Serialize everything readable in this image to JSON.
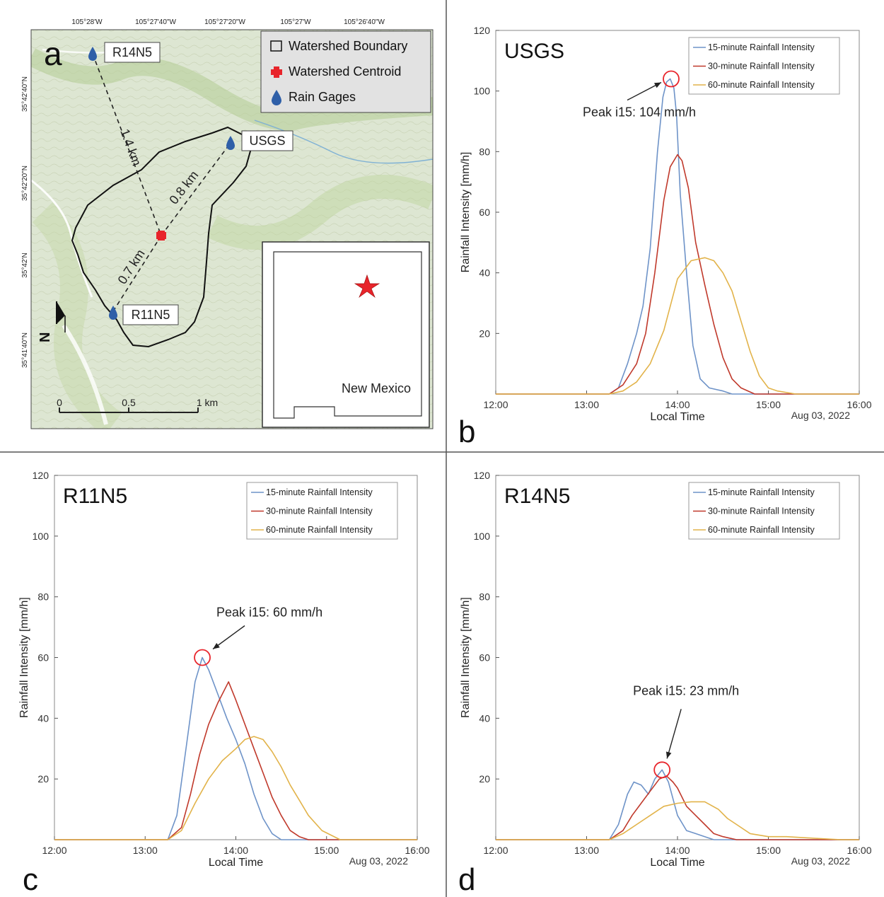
{
  "map": {
    "panel_letter": "a",
    "lon_ticks": [
      "105°28'W",
      "105°27'40\"W",
      "105°27'20\"W",
      "105°27'W",
      "105°26'40\"W"
    ],
    "lat_ticks": [
      "35°42'40\"N",
      "35°42'20\"N",
      "35°42'N",
      "35°41'40\"N"
    ],
    "legend": {
      "boundary": "Watershed Boundary",
      "centroid": "Watershed Centroid",
      "gages": "Rain Gages"
    },
    "gages": [
      "R14N5",
      "USGS",
      "R11N5"
    ],
    "distances": [
      "1.4 km",
      "0.8 km",
      "0.7 km"
    ],
    "scale_labels": [
      "0",
      "0.5",
      "1 km"
    ],
    "inset_label": "New Mexico",
    "north_label": "N",
    "colors": {
      "centroid": "#e8242b",
      "gage": "#2f5fa8",
      "boundary": "#111111"
    }
  },
  "chart_data": [
    {
      "type": "line",
      "panel": "b",
      "station": "USGS",
      "xlabel": "Local Time",
      "ylabel": "Rainfall Intensity [mm/h]",
      "date": "Aug 03, 2022",
      "xlim": [
        12,
        16
      ],
      "ylim": [
        0,
        120
      ],
      "x_ticks": [
        "12:00",
        "13:00",
        "14:00",
        "15:00",
        "16:00"
      ],
      "y_ticks": [
        20,
        40,
        60,
        80,
        100,
        120
      ],
      "legend_position": "top-right",
      "annotation": {
        "text": "Peak i15: 104 mm/h",
        "x": 13.93,
        "y": 104
      },
      "series": [
        {
          "name": "15-minute Rainfall Intensity",
          "color": "#6e93c8",
          "x": [
            12,
            13.25,
            13.35,
            13.45,
            13.55,
            13.62,
            13.7,
            13.78,
            13.84,
            13.88,
            13.92,
            13.96,
            13.99,
            14.03,
            14.1,
            14.17,
            14.25,
            14.35,
            14.5,
            14.6,
            16
          ],
          "y": [
            0,
            0,
            2,
            10,
            20,
            29,
            48,
            80,
            98,
            103,
            104,
            101,
            92,
            66,
            40,
            16,
            5,
            2,
            1,
            0,
            0
          ]
        },
        {
          "name": "30-minute Rainfall Intensity",
          "color": "#c0392b",
          "x": [
            12,
            13.25,
            13.4,
            13.55,
            13.65,
            13.75,
            13.85,
            13.92,
            14.0,
            14.05,
            14.12,
            14.2,
            14.3,
            14.4,
            14.5,
            14.6,
            14.7,
            14.85,
            16
          ],
          "y": [
            0,
            0,
            3,
            10,
            20,
            40,
            64,
            75,
            79,
            77,
            68,
            50,
            36,
            23,
            12,
            5,
            2,
            0,
            0
          ]
        },
        {
          "name": "60-minute Rainfall Intensity",
          "color": "#e2b34a",
          "x": [
            12,
            13.25,
            13.4,
            13.55,
            13.7,
            13.85,
            14.0,
            14.15,
            14.3,
            14.4,
            14.5,
            14.6,
            14.7,
            14.8,
            14.9,
            15.0,
            15.1,
            15.3,
            16
          ],
          "y": [
            0,
            0,
            1,
            4,
            10,
            21,
            38,
            44,
            45,
            44,
            40,
            34,
            24,
            14,
            6,
            2,
            1,
            0,
            0
          ]
        }
      ]
    },
    {
      "type": "line",
      "panel": "c",
      "station": "R11N5",
      "xlabel": "Local Time",
      "ylabel": "Rainfall Intensity [mm/h]",
      "date": "Aug 03, 2022",
      "xlim": [
        12,
        16
      ],
      "ylim": [
        0,
        120
      ],
      "x_ticks": [
        "12:00",
        "13:00",
        "14:00",
        "15:00",
        "16:00"
      ],
      "y_ticks": [
        20,
        40,
        60,
        80,
        100,
        120
      ],
      "legend_position": "top-right",
      "annotation": {
        "text": "Peak i15: 60 mm/h",
        "x": 13.63,
        "y": 60
      },
      "series": [
        {
          "name": "15-minute Rainfall Intensity",
          "color": "#6e93c8",
          "x": [
            12,
            13.25,
            13.35,
            13.45,
            13.55,
            13.63,
            13.7,
            13.8,
            13.9,
            14.0,
            14.1,
            14.2,
            14.3,
            14.4,
            14.5,
            14.6,
            16
          ],
          "y": [
            0,
            0,
            8,
            30,
            52,
            60,
            56,
            48,
            40,
            33,
            25,
            15,
            7,
            2,
            0,
            0,
            0
          ]
        },
        {
          "name": "30-minute Rainfall Intensity",
          "color": "#c0392b",
          "x": [
            12,
            13.25,
            13.4,
            13.5,
            13.6,
            13.7,
            13.8,
            13.92,
            14.0,
            14.1,
            14.2,
            14.3,
            14.4,
            14.5,
            14.6,
            14.7,
            14.8,
            16
          ],
          "y": [
            0,
            0,
            4,
            15,
            28,
            38,
            45,
            52,
            46,
            38,
            30,
            22,
            14,
            8,
            3,
            1,
            0,
            0
          ]
        },
        {
          "name": "60-minute Rainfall Intensity",
          "color": "#e2b34a",
          "x": [
            12,
            13.25,
            13.4,
            13.55,
            13.7,
            13.85,
            14.0,
            14.1,
            14.2,
            14.3,
            14.4,
            14.5,
            14.6,
            14.7,
            14.8,
            14.95,
            15.15,
            16
          ],
          "y": [
            0,
            0,
            3,
            12,
            20,
            26,
            30,
            33,
            34,
            33,
            29,
            24,
            18,
            13,
            8,
            3,
            0,
            0
          ]
        }
      ]
    },
    {
      "type": "line",
      "panel": "d",
      "station": "R14N5",
      "xlabel": "Local Time",
      "ylabel": "Rainfall Intensity [mm/h]",
      "date": "Aug 03, 2022",
      "xlim": [
        12,
        16
      ],
      "ylim": [
        0,
        120
      ],
      "x_ticks": [
        "12:00",
        "13:00",
        "14:00",
        "15:00",
        "16:00"
      ],
      "y_ticks": [
        20,
        40,
        60,
        80,
        100,
        120
      ],
      "legend_position": "top-right",
      "annotation": {
        "text": "Peak i15: 23 mm/h",
        "x": 13.83,
        "y": 23
      },
      "series": [
        {
          "name": "15-minute Rainfall Intensity",
          "color": "#6e93c8",
          "x": [
            12,
            13.25,
            13.35,
            13.45,
            13.52,
            13.6,
            13.68,
            13.75,
            13.83,
            13.9,
            14.0,
            14.1,
            14.2,
            14.3,
            14.4,
            14.55,
            16
          ],
          "y": [
            0,
            0,
            5,
            15,
            19,
            18,
            15,
            20,
            23,
            19,
            8,
            3,
            2,
            1,
            0,
            0,
            0
          ]
        },
        {
          "name": "30-minute Rainfall Intensity",
          "color": "#c0392b",
          "x": [
            12,
            13.25,
            13.4,
            13.5,
            13.6,
            13.7,
            13.8,
            13.88,
            13.95,
            14.0,
            14.1,
            14.2,
            14.3,
            14.4,
            14.5,
            14.65,
            14.8,
            16
          ],
          "y": [
            0,
            0,
            3,
            8,
            12,
            16,
            20,
            21,
            19,
            17,
            11,
            8,
            5,
            2,
            1,
            0,
            0,
            0
          ]
        },
        {
          "name": "60-minute Rainfall Intensity",
          "color": "#e2b34a",
          "x": [
            12,
            13.25,
            13.4,
            13.55,
            13.7,
            13.85,
            14.0,
            14.15,
            14.3,
            14.45,
            14.55,
            14.65,
            14.8,
            15.0,
            15.2,
            15.5,
            15.8,
            16
          ],
          "y": [
            0,
            0,
            2,
            5,
            8,
            11,
            12,
            12.5,
            12.5,
            10,
            7,
            5,
            2,
            1,
            1,
            0.5,
            0,
            0
          ]
        }
      ]
    }
  ]
}
